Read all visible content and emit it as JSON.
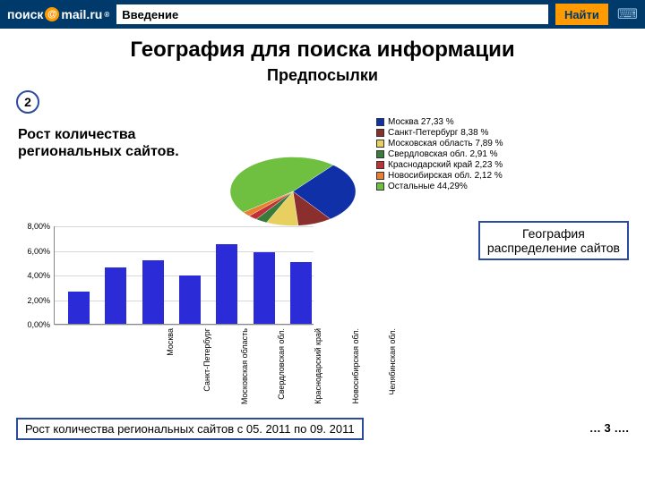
{
  "topbar": {
    "logo_text_1": "поиск",
    "logo_text_2": "mail.ru",
    "search_value": "Введение",
    "find_label": "Найти"
  },
  "title": "География для поиска информации",
  "subtitle": "Предпосылки",
  "badge": "2",
  "row1_text": "Рост количества региональных сайтов.",
  "pie": {
    "slices": [
      {
        "label": "Москва 27,33 %",
        "value": 27.33,
        "color": "#1030a8"
      },
      {
        "label": "Санкт-Петербург 8,38 %",
        "value": 8.38,
        "color": "#8b2e2e"
      },
      {
        "label": "Московская область 7,89 %",
        "value": 7.89,
        "color": "#e8d060"
      },
      {
        "label": "Свердловская обл. 2,91 %",
        "value": 2.91,
        "color": "#3a7a3a"
      },
      {
        "label": "Краснодарский край 2,23 %",
        "value": 2.23,
        "color": "#c03038"
      },
      {
        "label": "Новосибирская обл. 2,12 %",
        "value": 2.12,
        "color": "#e88030"
      },
      {
        "label": "Остальные 44,29%",
        "value": 44.29,
        "color": "#6fbf40"
      }
    ],
    "start_angle_deg": -50
  },
  "box_text_l1": "География",
  "box_text_l2": "распределение сайтов",
  "bar": {
    "y_ticks": [
      "0,00%",
      "2,00%",
      "4,00%",
      "6,00%",
      "8,00%"
    ],
    "y_max": 8,
    "bar_color": "#2b2bd8",
    "grid_color": "#d8d8d8",
    "cats": [
      {
        "label": "Москва",
        "value": 2.6
      },
      {
        "label": "Санкт-Петербург",
        "value": 4.6
      },
      {
        "label": "Московская область",
        "value": 5.2
      },
      {
        "label": "Свердловская обл.",
        "value": 3.9
      },
      {
        "label": "Краснодарский край",
        "value": 6.5
      },
      {
        "label": "Новосибирская обл.",
        "value": 5.8
      },
      {
        "label": "Челябинская обл.",
        "value": 5.0
      }
    ]
  },
  "caption": "Рост количества региональных  сайтов с 05. 2011 по 09. 2011",
  "pager": "… 3 …."
}
